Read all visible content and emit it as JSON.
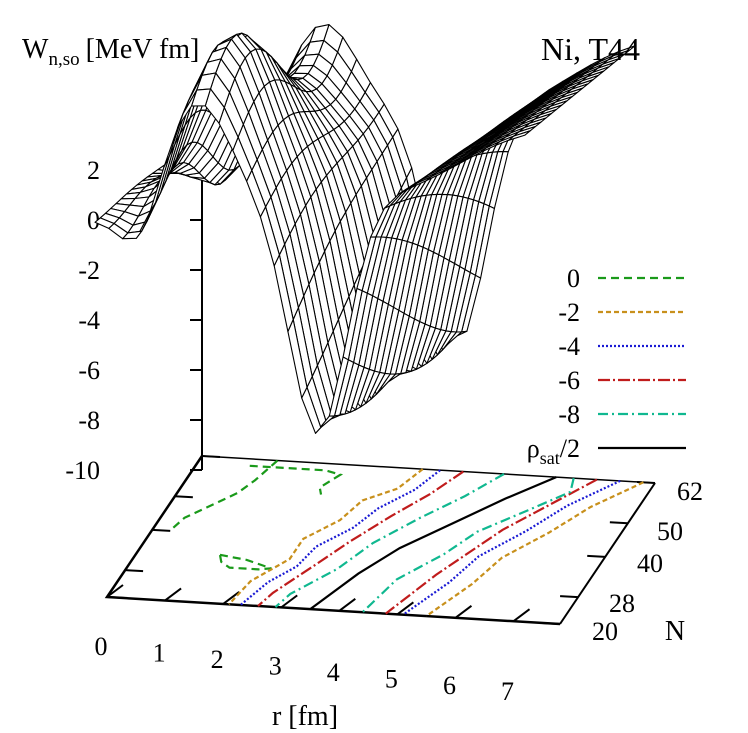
{
  "chart_data": {
    "type": "surface3d",
    "title": "Ni, T44",
    "zlabel_main": "W",
    "zlabel_sub": "n,so",
    "zlabel_unit": "[MeV fm]",
    "xlabel": "r [fm]",
    "ylabel": "N",
    "x_ticks": [
      "0",
      "1",
      "2",
      "3",
      "4",
      "5",
      "6",
      "7"
    ],
    "y_ticks": [
      "20",
      "28",
      "40",
      "50",
      "62"
    ],
    "z_ticks": [
      "2",
      "0",
      "-2",
      "-4",
      "-6",
      "-8",
      "-10"
    ],
    "xlim": [
      0,
      7.8
    ],
    "ylim": [
      20,
      62
    ],
    "zlim": [
      -10,
      2
    ],
    "surface": {
      "r": [
        0,
        0.25,
        0.5,
        0.75,
        1,
        1.25,
        1.5,
        1.75,
        2,
        2.25,
        2.5,
        2.75,
        3,
        3.25,
        3.5,
        3.75,
        4,
        4.25,
        4.5,
        4.75,
        5,
        5.25,
        5.5,
        5.75,
        6,
        6.25,
        6.5,
        6.75,
        7,
        7.25,
        7.5,
        7.8
      ],
      "N": [
        20,
        22,
        24,
        26,
        28,
        30,
        32,
        34,
        36,
        38,
        40,
        42,
        44,
        46,
        48,
        50,
        52,
        54,
        56,
        58,
        60,
        62
      ],
      "description_values": {
        "z_min": -9.5,
        "z_max": 6.6
      }
    },
    "legend": {
      "placement": "right",
      "entries": [
        {
          "label": "0",
          "color": "#1a9a1a",
          "dash": "8,5"
        },
        {
          "label": "-2",
          "color": "#c8901c",
          "dash": "5,3"
        },
        {
          "label": "-4",
          "color": "#1a1ad4",
          "dash": "2,2"
        },
        {
          "label": "-6",
          "color": "#c01c1c",
          "dash": "12,3,2,3"
        },
        {
          "label": "-8",
          "color": "#10b890",
          "dash": "10,4,2,4"
        },
        {
          "label_main": "ρ",
          "label_sub": "sat",
          "label_tail": "/2",
          "color": "#000000",
          "dash": ""
        }
      ]
    }
  }
}
